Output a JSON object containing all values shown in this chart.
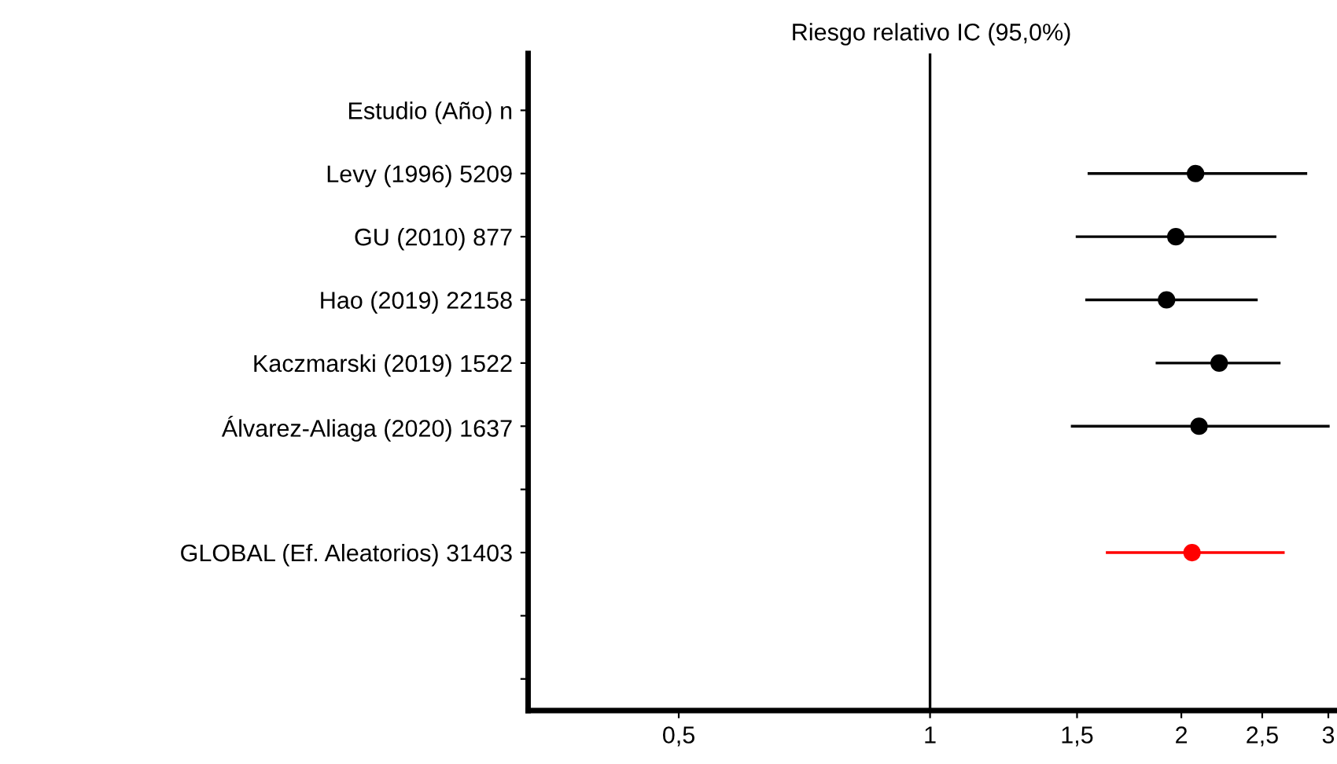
{
  "chart_data": {
    "type": "scatter",
    "orientation": "horizontal",
    "title": "Riesgo relativo IC (95,0%)",
    "categories": [
      "Estudio (Año) n",
      "Levy (1996) 5209",
      "GU (2010) 877",
      "Hao (2019) 22158",
      "Kaczmarski (2019) 1522",
      "Álvarez-Aliaga (2020) 1637",
      null,
      "GLOBAL (Ef. Aleatorios) 31403",
      null,
      null
    ],
    "series": [
      {
        "color": "#000000",
        "values": [
          null,
          2.08,
          1.97,
          1.92,
          2.22,
          2.1,
          null,
          null,
          null,
          null
        ],
        "errors": [
          null,
          [
            1.55,
            2.82
          ],
          [
            1.5,
            2.59
          ],
          [
            1.54,
            2.46
          ],
          [
            1.87,
            2.62
          ],
          [
            1.48,
            3.0
          ],
          null,
          null,
          null,
          null
        ]
      },
      {
        "color": "#ff0000",
        "values": [
          null,
          null,
          null,
          null,
          null,
          null,
          null,
          2.06,
          null,
          null
        ],
        "errors": [
          null,
          null,
          null,
          null,
          null,
          null,
          null,
          [
            1.63,
            2.65
          ],
          null,
          null
        ]
      }
    ],
    "log": "x",
    "xlim": [
      0.33,
      3.05
    ],
    "xticks": [
      {
        "value": 0.5,
        "label": "0,5"
      },
      1,
      {
        "value": 1.5,
        "label": "1,5"
      },
      2,
      {
        "value": 2.5,
        "label": "2,5"
      },
      3
    ],
    "ref_lines": [
      {
        "axis": "x",
        "value": 1,
        "color": "#000000"
      }
    ],
    "marker": "circle",
    "grid": false,
    "legend": false
  }
}
